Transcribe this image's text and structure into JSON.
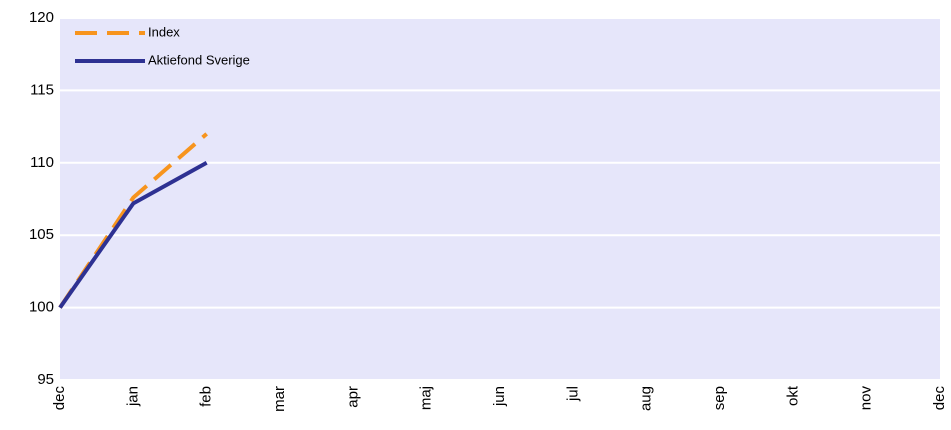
{
  "chart_data": {
    "type": "line",
    "categories": [
      "dec",
      "jan",
      "feb",
      "mar",
      "apr",
      "maj",
      "jun",
      "jul",
      "aug",
      "sep",
      "okt",
      "nov",
      "dec"
    ],
    "series": [
      {
        "name": "Index",
        "color": "#f7941d",
        "dashed": true,
        "values": [
          100,
          107.6,
          112,
          null,
          null,
          null,
          null,
          null,
          null,
          null,
          null,
          null,
          null
        ]
      },
      {
        "name": "Aktiefond Sverige",
        "color": "#2e3192",
        "dashed": false,
        "values": [
          100,
          107.2,
          110,
          null,
          null,
          null,
          null,
          null,
          null,
          null,
          null,
          null,
          null
        ]
      }
    ],
    "ylim": [
      95,
      120
    ],
    "yticks": [
      95,
      100,
      105,
      110,
      115,
      120
    ],
    "grid": true,
    "legend": "top-left",
    "background": "#e6e6fa"
  }
}
